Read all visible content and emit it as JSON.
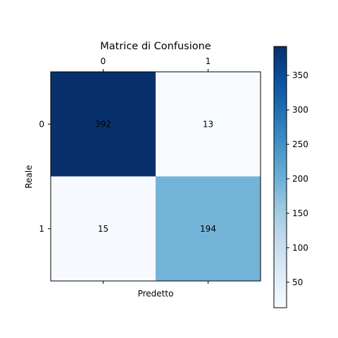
{
  "chart_data": {
    "type": "heatmap",
    "title": "Matrice di Confusione",
    "xlabel": "Predetto",
    "ylabel": "Reale",
    "x_categories": [
      "0",
      "1"
    ],
    "y_categories": [
      "0",
      "1"
    ],
    "values": [
      [
        392,
        13
      ],
      [
        15,
        194
      ]
    ],
    "colormap": "Blues",
    "color_range": [
      13,
      392
    ],
    "colorbar_ticks": [
      50,
      100,
      150,
      200,
      250,
      300,
      350
    ],
    "x_tick_position": "top",
    "grid": false,
    "colors": {
      "low": "#f7fbff",
      "high": "#08306b"
    }
  }
}
